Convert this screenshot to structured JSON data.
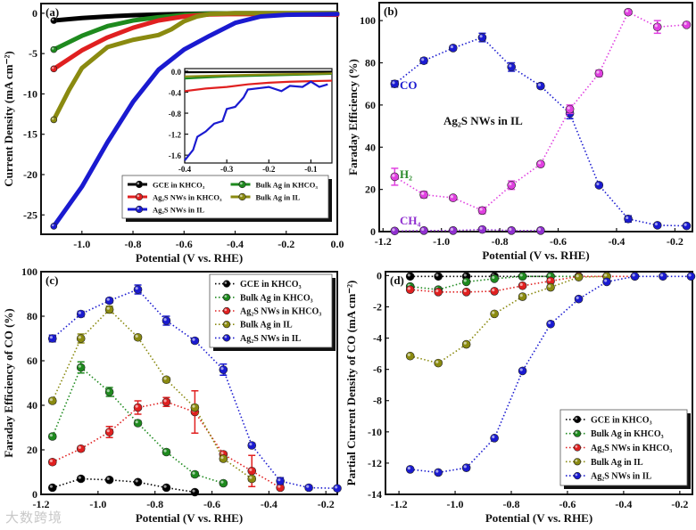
{
  "watermark": "大数跨境",
  "colors": {
    "GCE": "#000000",
    "BulkKHCO3": "#1e8a1e",
    "Ag2SKHCO3": "#e02020",
    "BulkIL": "#8a8a10",
    "Ag2SIL": "#1a1ad0",
    "H2": "#e040e0",
    "CH4": "#9030d0"
  },
  "chart_data": [
    {
      "id": "a",
      "panel_label": "(a)",
      "type": "line",
      "xlabel": "Potential (V vs. RHE)",
      "ylabel": "Current Density (mA cm⁻²)",
      "xlim": [
        -1.16,
        0.0
      ],
      "ylim": [
        -27.4,
        1.2
      ],
      "xticks": [
        -1.0,
        -0.8,
        -0.6,
        -0.4,
        -0.2,
        0.0
      ],
      "xticklabels": [
        "-1.0",
        "-0.8",
        "-0.6",
        "-0.4",
        "-0.2",
        "0.0"
      ],
      "yticks": [
        0,
        -5,
        -10,
        -15,
        -20,
        -25
      ],
      "yticklabels": [
        "0",
        "-5",
        "-10",
        "-15",
        "-20",
        "-25"
      ],
      "legend": {
        "placement": "bottom-right",
        "columns": 2
      },
      "series": [
        {
          "name": "GCE in KHCO₃",
          "color": "#000000",
          "x": [
            -1.11,
            -1.0,
            -0.9,
            -0.8,
            -0.7,
            -0.6,
            -0.5,
            -0.4,
            0.0
          ],
          "y": [
            -0.9,
            -0.6,
            -0.4,
            -0.25,
            -0.15,
            -0.08,
            -0.03,
            0,
            0
          ]
        },
        {
          "name": "Bulk Ag in KHCO₃",
          "color": "#1e8a1e",
          "x": [
            -1.11,
            -1.0,
            -0.9,
            -0.8,
            -0.7,
            -0.6,
            -0.5,
            -0.4,
            0.0
          ],
          "y": [
            -4.5,
            -2.8,
            -1.6,
            -0.9,
            -0.5,
            -0.2,
            -0.05,
            0,
            0
          ]
        },
        {
          "name": "Ag₂S NWs in KHCO₃",
          "color": "#e02020",
          "x": [
            -1.11,
            -1.0,
            -0.9,
            -0.8,
            -0.7,
            -0.6,
            -0.5,
            -0.4,
            0.0
          ],
          "y": [
            -6.9,
            -4.6,
            -3.0,
            -1.8,
            -0.9,
            -0.4,
            -0.15,
            -0.1,
            -0.2
          ]
        },
        {
          "name": "Bulk Ag in IL",
          "color": "#8a8a10",
          "x": [
            -1.11,
            -1.05,
            -1.0,
            -0.9,
            -0.8,
            -0.7,
            -0.65,
            -0.6,
            -0.55,
            -0.5,
            -0.4,
            0.0
          ],
          "y": [
            -13.2,
            -9.5,
            -6.8,
            -4.2,
            -3.3,
            -2.7,
            -2.0,
            -1.0,
            -0.4,
            -0.1,
            0,
            0
          ]
        },
        {
          "name": "Ag₂S NWs in IL",
          "color": "#1a1ad0",
          "x": [
            -1.11,
            -1.0,
            -0.9,
            -0.8,
            -0.7,
            -0.6,
            -0.5,
            -0.4,
            -0.3,
            -0.2,
            0.0
          ],
          "y": [
            -26.4,
            -21.5,
            -16.0,
            -11.0,
            -7.0,
            -4.5,
            -2.8,
            -1.2,
            -0.4,
            -0.2,
            -0.1
          ]
        }
      ],
      "inset": {
        "xlim": [
          -0.4,
          -0.05
        ],
        "ylim": [
          -1.75,
          0.05
        ],
        "xticks": [
          -0.4,
          -0.3,
          -0.2,
          -0.1
        ],
        "xticklabels": [
          "-0.4",
          "-0.3",
          "-0.2",
          "-0.1"
        ],
        "yticks": [
          0.0,
          -0.4,
          -0.8,
          -1.2,
          -1.6
        ],
        "yticklabels": [
          "0.0",
          "-0.4",
          "-0.8",
          "-1.2",
          "-1.6"
        ],
        "series": [
          {
            "color": "#000000",
            "x": [
              -0.4,
              -0.05
            ],
            "y": [
              -0.02,
              -0.01
            ]
          },
          {
            "color": "#1e8a1e",
            "x": [
              -0.4,
              -0.3,
              -0.2,
              -0.1,
              -0.05
            ],
            "y": [
              -0.14,
              -0.1,
              -0.08,
              -0.06,
              -0.05
            ]
          },
          {
            "color": "#8a8a10",
            "x": [
              -0.4,
              -0.3,
              -0.2,
              -0.1,
              -0.05
            ],
            "y": [
              -0.1,
              -0.08,
              -0.06,
              -0.05,
              -0.04
            ]
          },
          {
            "color": "#e02020",
            "x": [
              -0.4,
              -0.35,
              -0.3,
              -0.25,
              -0.2,
              -0.15,
              -0.1,
              -0.05
            ],
            "y": [
              -0.38,
              -0.33,
              -0.3,
              -0.25,
              -0.22,
              -0.2,
              -0.19,
              -0.18
            ]
          },
          {
            "color": "#1a1ad0",
            "x": [
              -0.4,
              -0.38,
              -0.37,
              -0.35,
              -0.33,
              -0.31,
              -0.3,
              -0.28,
              -0.26,
              -0.25,
              -0.22,
              -0.2,
              -0.17,
              -0.15,
              -0.12,
              -0.1,
              -0.08,
              -0.06
            ],
            "y": [
              -1.7,
              -1.5,
              -1.25,
              -1.15,
              -1.0,
              -0.95,
              -0.72,
              -0.68,
              -0.5,
              -0.35,
              -0.32,
              -0.3,
              -0.38,
              -0.28,
              -0.3,
              -0.2,
              -0.3,
              -0.25
            ]
          }
        ]
      }
    },
    {
      "id": "b",
      "panel_label": "(b)",
      "type": "line",
      "xlabel": "Potential (V vs. RHE)",
      "ylabel": "Faraday Efficiency (%)",
      "annotation": "Ag₂S NWs in IL",
      "xlim": [
        -1.213,
        -0.14
      ],
      "ylim": [
        0,
        108.5
      ],
      "xticks": [
        -1.2,
        -1.0,
        -0.8,
        -0.6,
        -0.4,
        -0.2
      ],
      "xticklabels": [
        "-1.2",
        "-1.0",
        "-0.8",
        "-0.6",
        "-0.4",
        "-0.2"
      ],
      "yticks": [
        0,
        20,
        40,
        60,
        80,
        100
      ],
      "yticklabels": [
        "0",
        "20",
        "40",
        "60",
        "80",
        "100"
      ],
      "series": [
        {
          "name": "CO",
          "color": "#1a1ad0",
          "x": [
            -1.16,
            -1.06,
            -0.96,
            -0.86,
            -0.76,
            -0.66,
            -0.56,
            -0.46,
            -0.36,
            -0.26,
            -0.16
          ],
          "y": [
            70,
            81,
            87,
            92,
            78,
            69,
            56,
            22,
            6,
            3,
            2.7
          ],
          "err": [
            1.5,
            1.2,
            1,
            2,
            2,
            1,
            2.5,
            1,
            1.5,
            0.8,
            0.6
          ]
        },
        {
          "name": "H₂",
          "color": "#e040e0",
          "x": [
            -1.16,
            -1.06,
            -0.96,
            -0.86,
            -0.76,
            -0.66,
            -0.56,
            -0.46,
            -0.36,
            -0.26,
            -0.16
          ],
          "y": [
            26,
            17.5,
            16,
            10,
            22,
            32,
            58,
            75,
            104,
            97,
            98
          ],
          "err": [
            4,
            1.5,
            1,
            1.5,
            2,
            1,
            2,
            1.5,
            1,
            3,
            1
          ]
        },
        {
          "name": "CH₄",
          "color": "#9030d0",
          "x": [
            -1.16,
            -1.06,
            -0.96,
            -0.86,
            -0.76,
            -0.66
          ],
          "y": [
            0.3,
            0.5,
            0.5,
            1,
            0.5,
            0.5
          ],
          "err": [
            0.2,
            0.2,
            0.2,
            0.2,
            0.2,
            0.2
          ]
        }
      ]
    },
    {
      "id": "c",
      "panel_label": "(c)",
      "type": "line",
      "xlabel": "Potential (V vs. RHE)",
      "ylabel": "Faraday Efficiency of CO (%)",
      "xlim": [
        -1.2,
        -0.16
      ],
      "ylim": [
        0,
        100
      ],
      "xticks": [
        -1.2,
        -1.0,
        -0.8,
        -0.6,
        -0.4,
        -0.2
      ],
      "xticklabels": [
        "-1.2",
        "-1.0",
        "-0.8",
        "-0.6",
        "-0.4",
        "-0.2"
      ],
      "yticks": [
        0,
        20,
        40,
        60,
        80,
        100
      ],
      "yticklabels": [
        "0",
        "20",
        "40",
        "60",
        "80",
        "100"
      ],
      "legend": {
        "placement": "top-right",
        "columns": 1
      },
      "series": [
        {
          "name": "GCE in KHCO₃",
          "color": "#000000",
          "x": [
            -1.16,
            -1.06,
            -0.96,
            -0.86,
            -0.76,
            -0.66
          ],
          "y": [
            3,
            7,
            6.5,
            5.5,
            3,
            1
          ],
          "err": [
            0.5,
            0.8,
            0.6,
            0.5,
            0.5,
            0.3
          ]
        },
        {
          "name": "Bulk Ag in KHCO₃",
          "color": "#1e8a1e",
          "x": [
            -1.16,
            -1.06,
            -0.96,
            -0.86,
            -0.76,
            -0.66,
            -0.56
          ],
          "y": [
            26,
            57,
            46,
            32,
            19,
            9,
            5
          ],
          "err": [
            1,
            2.5,
            2,
            1,
            1,
            1,
            0.8
          ]
        },
        {
          "name": "Ag₂S NWs in KHCO₃",
          "color": "#e02020",
          "x": [
            -1.16,
            -1.06,
            -0.96,
            -0.86,
            -0.76,
            -0.66,
            -0.56,
            -0.46,
            -0.36
          ],
          "y": [
            14.5,
            20.5,
            28,
            39,
            41.5,
            37,
            18,
            10.5,
            3
          ],
          "err": [
            1,
            1,
            2.5,
            3,
            2,
            9.5,
            1,
            7,
            0.5
          ]
        },
        {
          "name": "Bulk Ag in IL",
          "color": "#8a8a10",
          "x": [
            -1.16,
            -1.06,
            -0.96,
            -0.86,
            -0.76,
            -0.66,
            -0.56,
            -0.46
          ],
          "y": [
            42,
            70,
            83,
            70.5,
            51.5,
            39,
            16,
            7
          ],
          "err": [
            1,
            2,
            1.5,
            1,
            1,
            1,
            1,
            1
          ]
        },
        {
          "name": "Ag₂S NWs in IL",
          "color": "#1a1ad0",
          "x": [
            -1.16,
            -1.06,
            -0.96,
            -0.86,
            -0.76,
            -0.66,
            -0.56,
            -0.46,
            -0.36,
            -0.26,
            -0.16
          ],
          "y": [
            70,
            81,
            87,
            92,
            78,
            69,
            56,
            22,
            6,
            3,
            2.7
          ],
          "err": [
            1.5,
            1.2,
            1,
            2,
            2,
            1,
            2.5,
            1,
            1.5,
            0.8,
            0.6
          ]
        }
      ]
    },
    {
      "id": "d",
      "panel_label": "(d)",
      "type": "line",
      "xlabel": "Potential (V vs. RHE)",
      "ylabel": "Partial Current Density of CO (mA cm⁻²)",
      "xlim": [
        -1.248,
        -0.155
      ],
      "ylim": [
        -14,
        0.25
      ],
      "xticks": [
        -1.2,
        -1.0,
        -0.8,
        -0.6,
        -0.4,
        -0.2
      ],
      "xticklabels": [
        "-1.2",
        "-1.0",
        "-0.8",
        "-0.6",
        "-0.4",
        "-0.2"
      ],
      "yticks": [
        0,
        -2,
        -4,
        -6,
        -8,
        -10,
        -12,
        -14
      ],
      "yticklabels": [
        "0",
        "-2",
        "-4",
        "-6",
        "-8",
        "-10",
        "-12",
        "-14"
      ],
      "legend": {
        "placement": "bottom-right",
        "columns": 1
      },
      "series": [
        {
          "name": "GCE in KHCO₃",
          "color": "#000000",
          "x": [
            -1.16,
            -1.06,
            -0.96,
            -0.86,
            -0.76,
            -0.66
          ],
          "y": [
            -0.05,
            -0.05,
            -0.05,
            -0.05,
            -0.05,
            -0.05
          ]
        },
        {
          "name": "Bulk Ag in KHCO₃",
          "color": "#1e8a1e",
          "x": [
            -1.16,
            -1.06,
            -0.96,
            -0.86,
            -0.76,
            -0.66,
            -0.56
          ],
          "y": [
            -0.7,
            -0.9,
            -0.4,
            -0.2,
            -0.05,
            -0.05,
            -0.05
          ]
        },
        {
          "name": "Ag₂S NWs in KHCO₃",
          "color": "#e02020",
          "x": [
            -1.16,
            -1.06,
            -0.96,
            -0.86,
            -0.76,
            -0.66,
            -0.56,
            -0.46,
            -0.36
          ],
          "y": [
            -0.9,
            -1.05,
            -1.05,
            -1.0,
            -0.65,
            -0.35,
            -0.05,
            -0.05,
            -0.05
          ]
        },
        {
          "name": "Bulk Ag in IL",
          "color": "#8a8a10",
          "x": [
            -1.16,
            -1.06,
            -0.96,
            -0.86,
            -0.76,
            -0.66,
            -0.56,
            -0.46
          ],
          "y": [
            -5.15,
            -5.6,
            -4.4,
            -2.45,
            -1.35,
            -0.75,
            -0.1,
            -0.05
          ]
        },
        {
          "name": "Ag₂S NWs in IL",
          "color": "#1a1ad0",
          "x": [
            -1.16,
            -1.06,
            -0.96,
            -0.86,
            -0.76,
            -0.66,
            -0.56,
            -0.46,
            -0.36,
            -0.26,
            -0.16
          ],
          "y": [
            -12.4,
            -12.6,
            -12.3,
            -10.4,
            -6.1,
            -3.1,
            -1.5,
            -0.4,
            -0.05,
            -0.05,
            -0.05
          ]
        }
      ]
    }
  ]
}
